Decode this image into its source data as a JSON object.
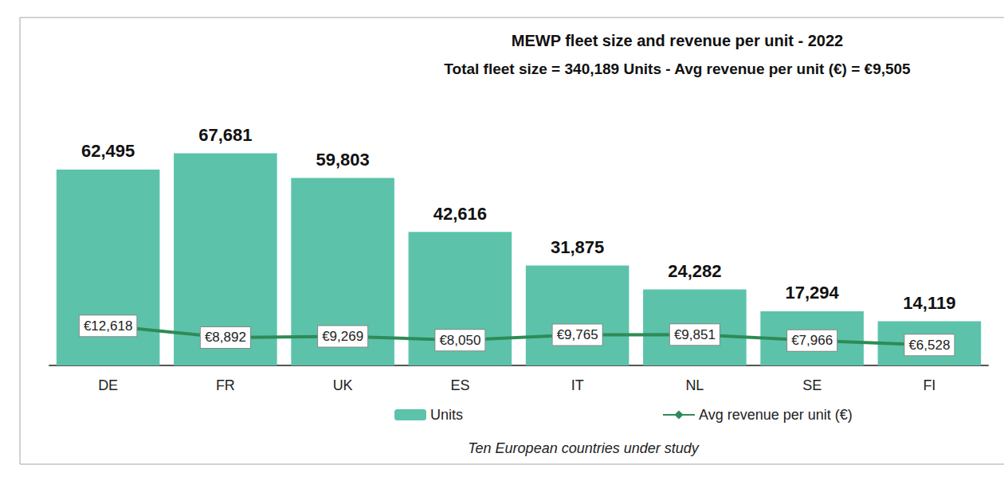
{
  "chart_data": {
    "type": "bar",
    "title": "MEWP fleet size and revenue per unit - 2022",
    "subtitle": "Total fleet size = 340,189 Units - Avg revenue per unit (€) = €9,505",
    "annotation": "Ten European countries under study",
    "categories": [
      "DE",
      "FR",
      "UK",
      "ES",
      "IT",
      "NL",
      "SE",
      "FI"
    ],
    "series": [
      {
        "name": "Units",
        "type": "bar",
        "color": "#5cc3aa",
        "values": [
          62495,
          67681,
          59803,
          42616,
          31875,
          24282,
          17294,
          14119
        ],
        "value_labels": [
          "62,495",
          "67,681",
          "59,803",
          "42,616",
          "31,875",
          "24,282",
          "17,294",
          "14,119"
        ]
      },
      {
        "name": "Avg revenue per unit (€)",
        "type": "line",
        "color": "#2e8b57",
        "marker": "diamond",
        "values": [
          12618,
          8892,
          9269,
          8050,
          9765,
          9851,
          7966,
          6528
        ],
        "value_labels": [
          "€12,618",
          "€8,892",
          "€9,269",
          "€8,050",
          "€9,765",
          "€9,851",
          "€7,966",
          "€6,528"
        ]
      }
    ],
    "ylim": [
      0,
      80000
    ],
    "yticks": [
      0,
      20000,
      40000,
      60000,
      80000
    ],
    "grid": false,
    "tick_labels": "x",
    "legend": "bottom",
    "data_labels": true
  }
}
